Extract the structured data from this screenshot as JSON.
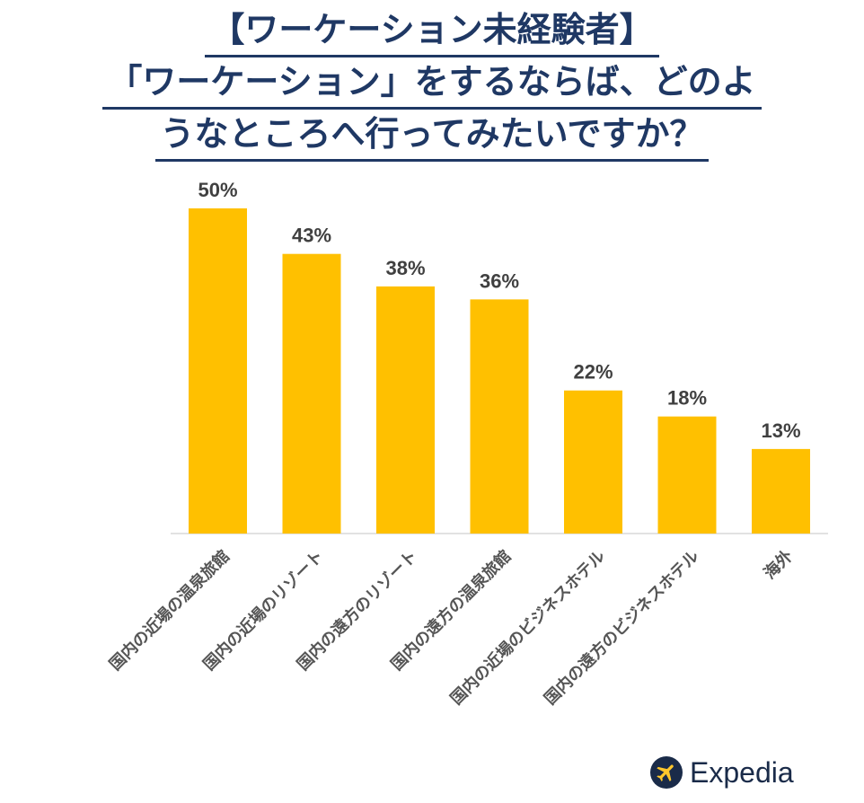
{
  "title_lines": [
    "【ワーケーション未経験者】",
    "「ワーケーション」をするならば、どのよ",
    "うなところへ行ってみたいですか？"
  ],
  "chart_data": {
    "type": "bar",
    "categories": [
      "国内の近場の温泉旅館",
      "国内の近場のリゾート",
      "国内の遠方のリゾート",
      "国内の遠方の温泉旅館",
      "国内の近場のビジネスホテル",
      "国内の遠方のビジネスホテル",
      "海外"
    ],
    "values": [
      50,
      43,
      38,
      36,
      22,
      18,
      13
    ],
    "data_labels": [
      "50%",
      "43%",
      "38%",
      "36%",
      "22%",
      "18%",
      "13%"
    ],
    "ylim": [
      0,
      50
    ],
    "grid": false,
    "legend": "none",
    "bar_color": "#FFC000"
  },
  "logo": {
    "name": "airplane-icon",
    "text": "Expedia",
    "color": "#1a2b49"
  }
}
